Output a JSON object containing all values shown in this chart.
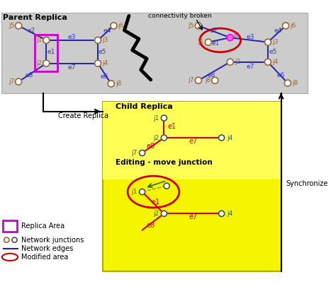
{
  "parent_label": "Parent Replica",
  "child_label": "Child Replica",
  "bg_color": "#cccccc",
  "child_bg": "#f5f500",
  "edge_blue": "#2222aa",
  "edge_red": "#cc0000",
  "node_fill": "#ffffff",
  "node_edge_brown": "#996633",
  "node_edge_dark": "#445544",
  "label_brown": "#996633",
  "label_blue": "#3333bb",
  "label_green": "#336633",
  "label_red": "#cc0000",
  "magenta": "#cc00cc",
  "red_ell": "#cc0000",
  "pink_fill": "#ff66ff",
  "pink_edge": "#ff00cc",
  "connectivity_text": "connectivity broken",
  "create_replica_text": "Create Replica",
  "synchronize_text": "Synchronize",
  "editing_text": "Editing - move junction",
  "leg1": "Replica Area",
  "leg2": "Network junctions",
  "leg3": "Network edges",
  "leg4": "Modified area"
}
